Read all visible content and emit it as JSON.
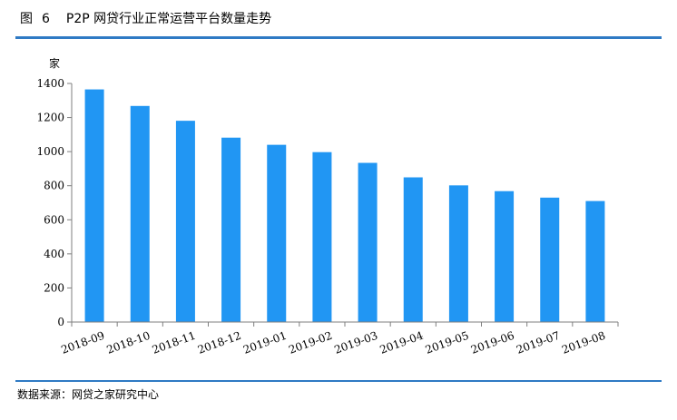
{
  "header": {
    "figure_label": "图",
    "figure_number": "6",
    "title": "P2P 网贷行业正常运营平台数量走势"
  },
  "source": "数据来源：网贷之家研究中心",
  "colors": {
    "bar": "#2196f3",
    "rule": "#2f7ac4",
    "axis": "#7f7f7f"
  },
  "chart_data": {
    "type": "bar",
    "title": "P2P 网贷行业正常运营平台数量走势",
    "ylabel": "家",
    "xlabel": "",
    "ylim": [
      0,
      1400
    ],
    "yticks": [
      0,
      200,
      400,
      600,
      800,
      1000,
      1200,
      1400
    ],
    "grid": false,
    "legend": "none",
    "categories": [
      "2018-09",
      "2018-10",
      "2018-11",
      "2018-12",
      "2019-01",
      "2019-02",
      "2019-03",
      "2019-04",
      "2019-05",
      "2019-06",
      "2019-07",
      "2019-08"
    ],
    "values": [
      1365,
      1268,
      1181,
      1082,
      1040,
      997,
      934,
      849,
      802,
      768,
      730,
      710
    ]
  }
}
